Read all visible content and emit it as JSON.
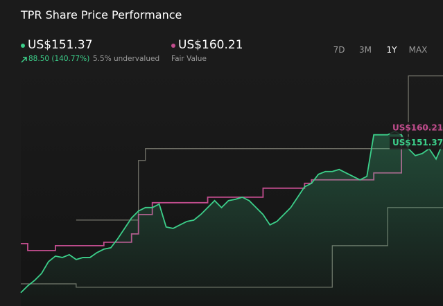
{
  "header": {
    "title": "TPR Share Price Performance",
    "price": "US$151.37",
    "change": "88.50 (140.77%)",
    "valuation": "5.5% undervalued",
    "fair_value": "US$160.21",
    "fair_value_label": "Fair Value",
    "ranges": [
      "7D",
      "3M",
      "1Y",
      "MAX"
    ]
  },
  "chart_data": {
    "type": "line",
    "ylim": [
      55,
      195
    ],
    "series": [
      {
        "color": "#3ccf8a",
        "step": false,
        "fill": true,
        "values": [
          62.87,
          66.89,
          70.16,
          74.26,
          81.23,
          84.51,
          83.69,
          85.33,
          82.46,
          83.69,
          83.69,
          86.56,
          88.61,
          89.43,
          94.75,
          100.9,
          107.05,
          111.15,
          113.2,
          113.2,
          115.25,
          101.72,
          100.9,
          102.95,
          105.0,
          105.82,
          109.1,
          113.2,
          117.3,
          113.2,
          117.3,
          118.11,
          119.34,
          117.3,
          113.2,
          109.1,
          102.95,
          105.0,
          109.1,
          113.2,
          119.34,
          125.49,
          127.54,
          132.87,
          134.51,
          134.51,
          135.74,
          133.69,
          131.64,
          129.59,
          131.64,
          156.23,
          156.23,
          156.23,
          158.28,
          156.23,
          148.03,
          143.93,
          145.16,
          148.03,
          141.89,
          151.37
        ]
      },
      {
        "color": "#c24d8e",
        "step": true,
        "fill": false,
        "values": [
          91.89,
          87.79,
          87.79,
          87.79,
          87.79,
          90.66,
          90.66,
          90.66,
          90.66,
          90.66,
          90.66,
          90.66,
          92.7,
          92.7,
          92.7,
          92.7,
          97.62,
          109.1,
          109.1,
          116.07,
          116.07,
          116.07,
          116.07,
          116.07,
          116.07,
          116.07,
          116.07,
          119.34,
          119.34,
          119.34,
          119.34,
          119.34,
          119.34,
          119.34,
          119.34,
          124.67,
          124.67,
          124.67,
          124.67,
          124.67,
          124.67,
          127.54,
          129.59,
          129.59,
          129.59,
          129.59,
          129.59,
          129.59,
          129.59,
          129.59,
          129.59,
          133.69,
          133.69,
          133.69,
          133.69,
          160.21,
          160.21,
          160.21,
          160.21,
          160.21,
          160.21,
          160.21
        ]
      },
      {
        "color": "#77776d",
        "step": true,
        "fill": false,
        "values": [
          null,
          null,
          null,
          null,
          null,
          null,
          null,
          null,
          105.82,
          105.82,
          105.82,
          105.82,
          105.82,
          105.82,
          105.82,
          105.82,
          105.82,
          141.07,
          148.03,
          148.03,
          148.03,
          148.03,
          148.03,
          148.03,
          148.03,
          148.03,
          148.03,
          148.03,
          148.03,
          148.03,
          148.03,
          148.03,
          148.03,
          148.03,
          148.03,
          148.03,
          148.03,
          148.03,
          148.03,
          148.03,
          148.03,
          148.03,
          148.03,
          148.03,
          148.03,
          148.03,
          148.03,
          148.03,
          148.03,
          148.03,
          148.03,
          148.03,
          148.03,
          148.03,
          148.03,
          148.03,
          191.07,
          191.07,
          191.07,
          191.07,
          191.07,
          191.07
        ]
      },
      {
        "color": "#77776d",
        "step": true,
        "fill": false,
        "values": [
          68.11,
          68.11,
          68.11,
          68.11,
          68.11,
          68.11,
          68.11,
          68.11,
          66.07,
          66.07,
          66.07,
          66.07,
          66.07,
          66.07,
          66.07,
          66.07,
          66.07,
          66.07,
          66.07,
          66.07,
          66.07,
          66.07,
          66.07,
          66.07,
          66.07,
          66.07,
          66.07,
          66.07,
          66.07,
          66.07,
          66.07,
          66.07,
          66.07,
          66.07,
          66.07,
          66.07,
          66.07,
          66.07,
          66.07,
          66.07,
          66.07,
          66.07,
          66.07,
          66.07,
          66.07,
          90.66,
          90.66,
          90.66,
          90.66,
          90.66,
          90.66,
          90.66,
          90.66,
          113.2,
          113.2,
          113.2,
          113.2,
          113.2,
          113.2,
          113.2,
          113.2,
          113.2
        ]
      }
    ]
  }
}
